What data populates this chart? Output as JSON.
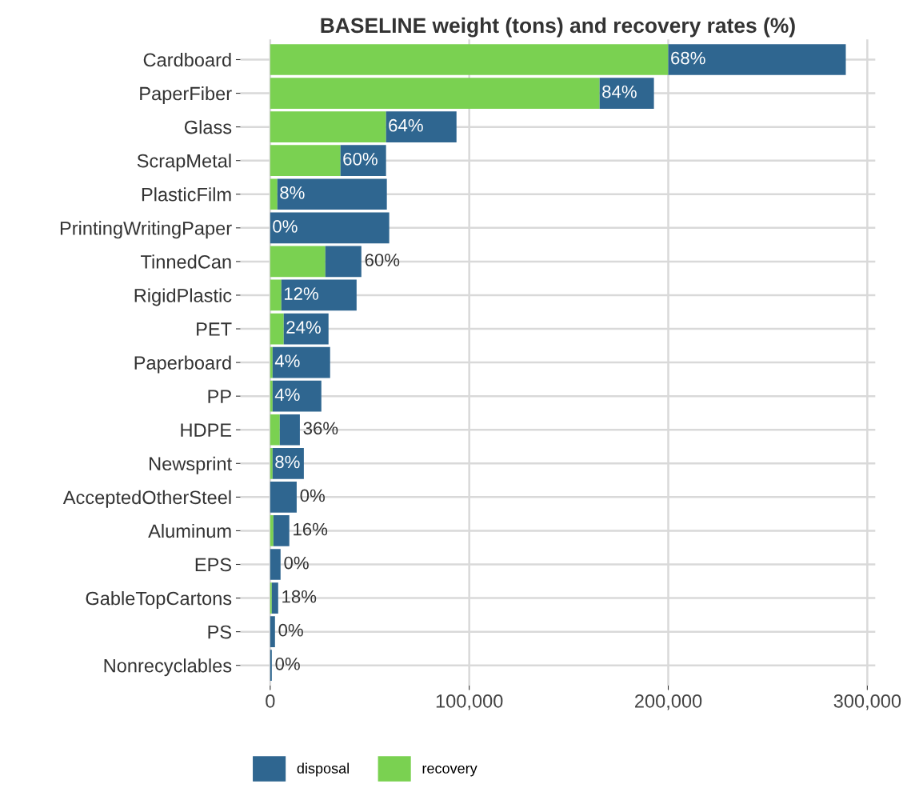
{
  "chart_data": {
    "type": "bar",
    "orientation": "horizontal",
    "stacked": true,
    "title": "BASELINE weight (tons) and recovery rates (%)",
    "categories": [
      "Cardboard",
      "PaperFiber",
      "Glass",
      "ScrapMetal",
      "PlasticFilm",
      "PrintingWritingPaper",
      "TinnedCan",
      "RigidPlastic",
      "PET",
      "Paperboard",
      "PP",
      "HDPE",
      "Newsprint",
      "AcceptedOtherSteel",
      "Aluminum",
      "EPS",
      "GableTopCartons",
      "PS",
      "Nonrecyclables"
    ],
    "series": [
      {
        "name": "recovery",
        "color": "#7ad151",
        "values": [
          200000,
          165500,
          58200,
          35300,
          3600,
          0,
          27700,
          5600,
          6800,
          1200,
          1200,
          4800,
          1200,
          0,
          1600,
          0,
          800,
          0,
          0
        ]
      },
      {
        "name": "disposal",
        "color": "#2f6690",
        "values": [
          89200,
          27300,
          35400,
          22900,
          55000,
          59800,
          18100,
          37800,
          22500,
          28900,
          24500,
          10100,
          15700,
          13300,
          8000,
          5200,
          3200,
          2400,
          800
        ]
      }
    ],
    "annotations": [
      {
        "text": "68%",
        "x": 200000,
        "y": "Cardboard"
      },
      {
        "text": "84%",
        "x": 165500,
        "y": "PaperFiber"
      },
      {
        "text": "64%",
        "x": 58200,
        "y": "Glass"
      },
      {
        "text": "60%",
        "x": 35300,
        "y": "ScrapMetal"
      },
      {
        "text": "8%",
        "x": 3600,
        "y": "PlasticFilm"
      },
      {
        "text": "0%",
        "x": 0,
        "y": "PrintingWritingPaper"
      },
      {
        "text": "60%",
        "x": 27700,
        "y": "TinnedCan"
      },
      {
        "text": "12%",
        "x": 5600,
        "y": "RigidPlastic"
      },
      {
        "text": "24%",
        "x": 6800,
        "y": "PET"
      },
      {
        "text": "4%",
        "x": 1200,
        "y": "Paperboard"
      },
      {
        "text": "4%",
        "x": 1200,
        "y": "PP"
      },
      {
        "text": "36%",
        "x": 4800,
        "y": "HDPE"
      },
      {
        "text": "8%",
        "x": 1200,
        "y": "Newsprint"
      },
      {
        "text": "0%",
        "x": 0,
        "y": "AcceptedOtherSteel"
      },
      {
        "text": "16%",
        "x": 1600,
        "y": "Aluminum"
      },
      {
        "text": "0%",
        "x": 0,
        "y": "EPS"
      },
      {
        "text": "18%",
        "x": 800,
        "y": "GableTopCartons"
      },
      {
        "text": "0%",
        "x": 0,
        "y": "PS"
      },
      {
        "text": "0%",
        "x": 0,
        "y": "Nonrecyclables"
      }
    ],
    "xlim": [
      -15000,
      304000
    ],
    "xticks": [
      {
        "value": 0,
        "label": "0"
      },
      {
        "value": 100000,
        "label": "100,000"
      },
      {
        "value": 200000,
        "label": "200,000"
      },
      {
        "value": 300000,
        "label": "300,000"
      }
    ],
    "grid": true,
    "legend": "bottom"
  }
}
